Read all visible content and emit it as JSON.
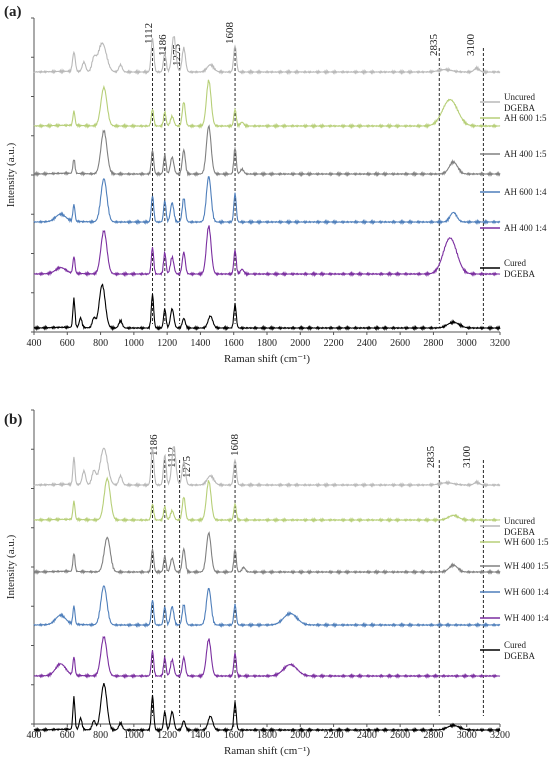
{
  "figure": {
    "panels": [
      {
        "letter": "(a)",
        "legend": [
          "Uncured DGEBA",
          "AH 600 1:5",
          "AH 400 1:5",
          "AH 600 1:4",
          "AH 400 1:4",
          "Cured DGEBA"
        ],
        "peak_labels": [
          "1112",
          "1186",
          "1275",
          "1608",
          "2835",
          "3100"
        ]
      },
      {
        "letter": "(b)",
        "legend": [
          "Uncured DGEBA",
          "WH 600 1:5",
          "WH 400 1:5",
          "WH 600 1:4",
          "WH 400 1:4",
          "Cured DGEBA"
        ],
        "peak_labels": [
          "1186",
          "1112",
          "1275",
          "1608",
          "2835",
          "3100"
        ]
      }
    ]
  },
  "chart_data": [
    {
      "type": "line",
      "title": "",
      "panel": "(a)",
      "xlabel": "Raman shift (cm⁻¹)",
      "ylabel": "Intensity (a.u.)",
      "xlim": [
        400,
        3200
      ],
      "x_ticks": [
        "400",
        "600",
        "800",
        "1000",
        "1200",
        "1400",
        "1600",
        "1800",
        "2000",
        "2200",
        "2400",
        "2600",
        "2800",
        "3000",
        "3200"
      ],
      "peak_markers": [
        1112,
        1186,
        1275,
        1608,
        2835,
        3100
      ],
      "series": [
        {
          "name": "Uncured DGEBA",
          "color": "#b9b9b9",
          "peaks": [
            [
              640,
              0.4,
              8
            ],
            [
              700,
              0.2,
              10
            ],
            [
              760,
              0.25,
              12
            ],
            [
              810,
              0.6,
              25
            ],
            [
              920,
              0.15,
              10
            ],
            [
              1112,
              0.7,
              8
            ],
            [
              1186,
              0.4,
              8
            ],
            [
              1240,
              0.75,
              12
            ],
            [
              1300,
              0.5,
              10
            ],
            [
              1460,
              0.15,
              20
            ],
            [
              1608,
              0.55,
              8
            ],
            [
              2870,
              0.05,
              40
            ],
            [
              3060,
              0.08,
              15
            ]
          ]
        },
        {
          "name": "AH 600 1:5",
          "color": "#b7cf78",
          "peaks": [
            [
              640,
              0.3,
              6
            ],
            [
              820,
              0.8,
              18
            ],
            [
              1112,
              0.35,
              7
            ],
            [
              1186,
              0.3,
              7
            ],
            [
              1230,
              0.2,
              10
            ],
            [
              1300,
              0.5,
              9
            ],
            [
              1450,
              0.95,
              14
            ],
            [
              1608,
              0.35,
              7
            ],
            [
              1650,
              0.08,
              10
            ],
            [
              2900,
              0.55,
              45
            ]
          ]
        },
        {
          "name": "AH 400 1:5",
          "color": "#808080",
          "peaks": [
            [
              640,
              0.3,
              6
            ],
            [
              820,
              0.9,
              18
            ],
            [
              1112,
              0.5,
              7
            ],
            [
              1186,
              0.4,
              7
            ],
            [
              1230,
              0.35,
              10
            ],
            [
              1300,
              0.5,
              9
            ],
            [
              1450,
              1.0,
              14
            ],
            [
              1608,
              0.55,
              7
            ],
            [
              1650,
              0.1,
              10
            ],
            [
              2920,
              0.25,
              25
            ]
          ]
        },
        {
          "name": "AH 600 1:4",
          "color": "#4f7fbb",
          "peaks": [
            [
              560,
              0.15,
              30
            ],
            [
              640,
              0.35,
              6
            ],
            [
              820,
              0.9,
              18
            ],
            [
              1112,
              0.55,
              7
            ],
            [
              1186,
              0.45,
              7
            ],
            [
              1230,
              0.4,
              10
            ],
            [
              1300,
              0.5,
              9
            ],
            [
              1450,
              0.95,
              14
            ],
            [
              1608,
              0.6,
              7
            ],
            [
              2920,
              0.2,
              20
            ]
          ]
        },
        {
          "name": "AH 400 1:4",
          "color": "#7b2fa0",
          "peaks": [
            [
              560,
              0.12,
              30
            ],
            [
              640,
              0.35,
              6
            ],
            [
              820,
              0.9,
              18
            ],
            [
              1112,
              0.55,
              7
            ],
            [
              1186,
              0.45,
              7
            ],
            [
              1230,
              0.35,
              10
            ],
            [
              1300,
              0.45,
              9
            ],
            [
              1450,
              1.0,
              14
            ],
            [
              1608,
              0.5,
              7
            ],
            [
              1650,
              0.1,
              10
            ],
            [
              2900,
              0.75,
              40
            ]
          ]
        },
        {
          "name": "Cured DGEBA",
          "color": "#000000",
          "peaks": [
            [
              640,
              0.6,
              6
            ],
            [
              680,
              0.2,
              8
            ],
            [
              760,
              0.2,
              10
            ],
            [
              810,
              0.9,
              18
            ],
            [
              920,
              0.15,
              10
            ],
            [
              1112,
              0.7,
              7
            ],
            [
              1186,
              0.4,
              7
            ],
            [
              1230,
              0.4,
              10
            ],
            [
              1300,
              0.2,
              9
            ],
            [
              1460,
              0.25,
              14
            ],
            [
              1608,
              0.5,
              7
            ],
            [
              2920,
              0.12,
              35
            ]
          ]
        }
      ]
    },
    {
      "type": "line",
      "title": "",
      "panel": "(b)",
      "xlabel": "Raman shift (cm⁻¹)",
      "ylabel": "Intensity (a.u.)",
      "xlim": [
        400,
        3200
      ],
      "x_ticks": [
        "400",
        "600",
        "800",
        "1000",
        "1200",
        "1400",
        "1600",
        "1800",
        "2000",
        "2200",
        "2400",
        "2600",
        "2800",
        "3000",
        "3200"
      ],
      "peak_markers": [
        1112,
        1186,
        1275,
        1608,
        2835,
        3100
      ],
      "series": [
        {
          "name": "Uncured DGEBA",
          "color": "#b9b9b9",
          "peaks": [
            [
              640,
              0.6,
              6
            ],
            [
              700,
              0.3,
              10
            ],
            [
              760,
              0.3,
              12
            ],
            [
              820,
              0.8,
              22
            ],
            [
              920,
              0.2,
              10
            ],
            [
              1112,
              0.8,
              8
            ],
            [
              1186,
              0.65,
              8
            ],
            [
              1240,
              0.85,
              12
            ],
            [
              1300,
              0.5,
              10
            ],
            [
              1460,
              0.2,
              20
            ],
            [
              1608,
              0.55,
              8
            ],
            [
              2880,
              0.05,
              40
            ],
            [
              3060,
              0.06,
              15
            ]
          ]
        },
        {
          "name": "WH 600 1:5",
          "color": "#b7cf78",
          "peaks": [
            [
              640,
              0.4,
              6
            ],
            [
              840,
              0.9,
              18
            ],
            [
              1112,
              0.35,
              7
            ],
            [
              1186,
              0.3,
              7
            ],
            [
              1230,
              0.2,
              10
            ],
            [
              1300,
              0.5,
              9
            ],
            [
              1450,
              0.85,
              14
            ],
            [
              1608,
              0.35,
              7
            ],
            [
              2920,
              0.1,
              30
            ]
          ]
        },
        {
          "name": "WH 400 1:5",
          "color": "#808080",
          "peaks": [
            [
              640,
              0.4,
              6
            ],
            [
              840,
              0.75,
              18
            ],
            [
              1112,
              0.5,
              7
            ],
            [
              1186,
              0.35,
              7
            ],
            [
              1230,
              0.3,
              10
            ],
            [
              1300,
              0.5,
              9
            ],
            [
              1450,
              0.85,
              14
            ],
            [
              1608,
              0.5,
              7
            ],
            [
              1660,
              0.1,
              10
            ],
            [
              2920,
              0.15,
              25
            ]
          ]
        },
        {
          "name": "WH 600 1:4",
          "color": "#4f7fbb",
          "peaks": [
            [
              560,
              0.2,
              30
            ],
            [
              640,
              0.4,
              6
            ],
            [
              820,
              0.85,
              18
            ],
            [
              1112,
              0.55,
              7
            ],
            [
              1186,
              0.4,
              7
            ],
            [
              1230,
              0.4,
              10
            ],
            [
              1300,
              0.45,
              9
            ],
            [
              1450,
              0.8,
              14
            ],
            [
              1608,
              0.45,
              7
            ],
            [
              1940,
              0.25,
              40
            ]
          ]
        },
        {
          "name": "WH 400 1:4",
          "color": "#7b2fa0",
          "peaks": [
            [
              560,
              0.25,
              30
            ],
            [
              640,
              0.4,
              6
            ],
            [
              820,
              0.85,
              18
            ],
            [
              1112,
              0.55,
              7
            ],
            [
              1186,
              0.4,
              7
            ],
            [
              1230,
              0.35,
              10
            ],
            [
              1300,
              0.4,
              9
            ],
            [
              1450,
              0.8,
              14
            ],
            [
              1608,
              0.5,
              7
            ],
            [
              1940,
              0.25,
              40
            ]
          ]
        },
        {
          "name": "Cured DGEBA",
          "color": "#000000",
          "peaks": [
            [
              640,
              0.7,
              6
            ],
            [
              680,
              0.25,
              8
            ],
            [
              760,
              0.2,
              10
            ],
            [
              820,
              1.0,
              18
            ],
            [
              920,
              0.15,
              10
            ],
            [
              1112,
              0.75,
              7
            ],
            [
              1186,
              0.4,
              7
            ],
            [
              1230,
              0.4,
              10
            ],
            [
              1300,
              0.2,
              9
            ],
            [
              1460,
              0.3,
              14
            ],
            [
              1608,
              0.6,
              7
            ],
            [
              2920,
              0.1,
              35
            ]
          ]
        }
      ]
    }
  ]
}
